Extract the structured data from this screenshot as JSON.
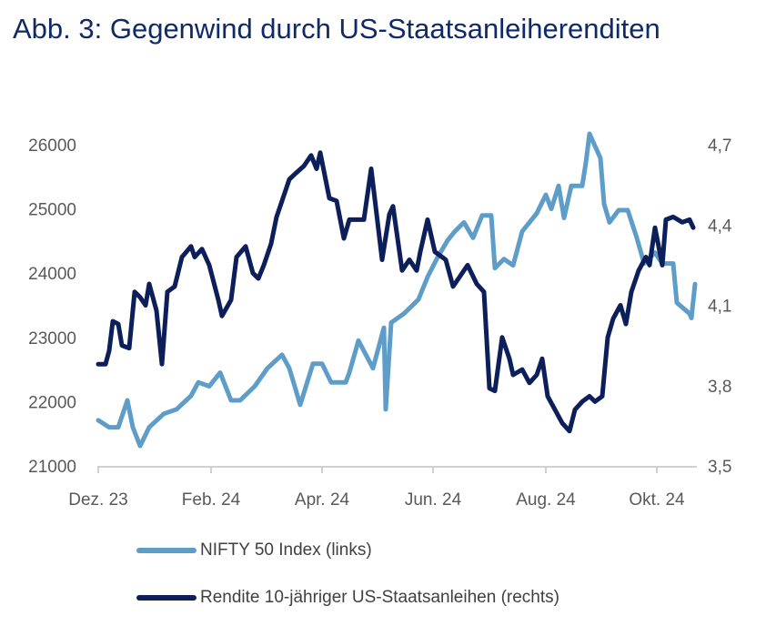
{
  "chart_data": {
    "type": "line",
    "title": "Abb. 3: Gegenwind durch US-Staatsanleiherenditen",
    "x_ticks": [
      {
        "date": "2023-12-31",
        "label": "Dez. 23"
      },
      {
        "date": "2024-02-29",
        "label": "Feb. 24"
      },
      {
        "date": "2024-04-30",
        "label": "Apr. 24"
      },
      {
        "date": "2024-06-30",
        "label": "Jun. 24"
      },
      {
        "date": "2024-08-31",
        "label": "Aug. 24"
      },
      {
        "date": "2024-10-31",
        "label": "Okt. 24"
      }
    ],
    "y_left": {
      "lim": [
        21000,
        26000
      ],
      "ticks": [
        "21000",
        "22000",
        "23000",
        "24000",
        "25000",
        "26000"
      ]
    },
    "y_right": {
      "lim": [
        3.5,
        4.7
      ],
      "ticks": [
        "3,5",
        "3,8",
        "4,1",
        "4,4",
        "4,7"
      ]
    },
    "grid": false,
    "legend_placement": "bottom",
    "series": [
      {
        "name": "NIFTY 50 Index  (links)",
        "axis": "left",
        "color": "#5f9dc9",
        "points": [
          [
            "2023-12-29",
            21710
          ],
          [
            "2024-01-04",
            21600
          ],
          [
            "2024-01-09",
            21600
          ],
          [
            "2024-01-14",
            22020
          ],
          [
            "2024-01-17",
            21600
          ],
          [
            "2024-01-21",
            21310
          ],
          [
            "2024-01-26",
            21600
          ],
          [
            "2024-02-03",
            21810
          ],
          [
            "2024-02-10",
            21880
          ],
          [
            "2024-02-18",
            22090
          ],
          [
            "2024-02-22",
            22300
          ],
          [
            "2024-02-28",
            22240
          ],
          [
            "2024-03-05",
            22450
          ],
          [
            "2024-03-11",
            22020
          ],
          [
            "2024-03-16",
            22020
          ],
          [
            "2024-03-24",
            22240
          ],
          [
            "2024-03-31",
            22520
          ],
          [
            "2024-04-08",
            22730
          ],
          [
            "2024-04-12",
            22520
          ],
          [
            "2024-04-18",
            21950
          ],
          [
            "2024-04-25",
            22590
          ],
          [
            "2024-04-30",
            22590
          ],
          [
            "2024-05-05",
            22300
          ],
          [
            "2024-05-13",
            22300
          ],
          [
            "2024-05-15",
            22450
          ],
          [
            "2024-05-20",
            22950
          ],
          [
            "2024-05-28",
            22520
          ],
          [
            "2024-06-03",
            23150
          ],
          [
            "2024-06-04",
            21880
          ],
          [
            "2024-06-07",
            23230
          ],
          [
            "2024-06-14",
            23370
          ],
          [
            "2024-06-22",
            23590
          ],
          [
            "2024-06-27",
            23940
          ],
          [
            "2024-07-02",
            24220
          ],
          [
            "2024-07-08",
            24510
          ],
          [
            "2024-07-12",
            24650
          ],
          [
            "2024-07-17",
            24790
          ],
          [
            "2024-07-22",
            24550
          ],
          [
            "2024-07-27",
            24900
          ],
          [
            "2024-08-01",
            24900
          ],
          [
            "2024-08-03",
            24080
          ],
          [
            "2024-08-08",
            24220
          ],
          [
            "2024-08-13",
            24120
          ],
          [
            "2024-08-18",
            24650
          ],
          [
            "2024-08-26",
            24930
          ],
          [
            "2024-08-31",
            25220
          ],
          [
            "2024-09-03",
            25000
          ],
          [
            "2024-09-07",
            25360
          ],
          [
            "2024-09-10",
            24860
          ],
          [
            "2024-09-14",
            25360
          ],
          [
            "2024-09-20",
            25360
          ],
          [
            "2024-09-22",
            25720
          ],
          [
            "2024-09-24",
            26170
          ],
          [
            "2024-09-30",
            25790
          ],
          [
            "2024-10-02",
            25080
          ],
          [
            "2024-10-05",
            24790
          ],
          [
            "2024-10-10",
            24980
          ],
          [
            "2024-10-15",
            24980
          ],
          [
            "2024-10-20",
            24550
          ],
          [
            "2024-10-24",
            24150
          ],
          [
            "2024-10-30",
            24320
          ],
          [
            "2024-11-03",
            24150
          ],
          [
            "2024-11-09",
            24150
          ],
          [
            "2024-11-11",
            23540
          ],
          [
            "2024-11-18",
            23370
          ],
          [
            "2024-11-19",
            23300
          ],
          [
            "2024-11-21",
            23830
          ]
        ]
      },
      {
        "name": "Rendite 10-jähriger US-Staatsanleihen (rechts)",
        "axis": "right",
        "color": "#0c1f5a",
        "points": [
          [
            "2023-12-29",
            3.88
          ],
          [
            "2024-01-02",
            3.88
          ],
          [
            "2024-01-04",
            3.93
          ],
          [
            "2024-01-06",
            4.04
          ],
          [
            "2024-01-09",
            4.03
          ],
          [
            "2024-01-11",
            3.95
          ],
          [
            "2024-01-15",
            3.94
          ],
          [
            "2024-01-18",
            4.15
          ],
          [
            "2024-01-21",
            4.13
          ],
          [
            "2024-01-24",
            4.1
          ],
          [
            "2024-01-26",
            4.18
          ],
          [
            "2024-01-30",
            4.08
          ],
          [
            "2024-02-02",
            3.88
          ],
          [
            "2024-02-05",
            4.15
          ],
          [
            "2024-02-09",
            4.17
          ],
          [
            "2024-02-13",
            4.28
          ],
          [
            "2024-02-18",
            4.32
          ],
          [
            "2024-02-20",
            4.28
          ],
          [
            "2024-02-24",
            4.31
          ],
          [
            "2024-02-28",
            4.25
          ],
          [
            "2024-03-04",
            4.12
          ],
          [
            "2024-03-06",
            4.06
          ],
          [
            "2024-03-11",
            4.12
          ],
          [
            "2024-03-14",
            4.28
          ],
          [
            "2024-03-19",
            4.32
          ],
          [
            "2024-03-23",
            4.22
          ],
          [
            "2024-03-26",
            4.2
          ],
          [
            "2024-03-29",
            4.25
          ],
          [
            "2024-04-02",
            4.33
          ],
          [
            "2024-04-05",
            4.43
          ],
          [
            "2024-04-08",
            4.49
          ],
          [
            "2024-04-12",
            4.57
          ],
          [
            "2024-04-15",
            4.59
          ],
          [
            "2024-04-20",
            4.62
          ],
          [
            "2024-04-24",
            4.66
          ],
          [
            "2024-04-27",
            4.61
          ],
          [
            "2024-04-29",
            4.67
          ],
          [
            "2024-05-04",
            4.5
          ],
          [
            "2024-05-08",
            4.49
          ],
          [
            "2024-05-12",
            4.35
          ],
          [
            "2024-05-15",
            4.42
          ],
          [
            "2024-05-23",
            4.42
          ],
          [
            "2024-05-27",
            4.61
          ],
          [
            "2024-06-02",
            4.27
          ],
          [
            "2024-06-06",
            4.44
          ],
          [
            "2024-06-08",
            4.47
          ],
          [
            "2024-06-13",
            4.23
          ],
          [
            "2024-06-17",
            4.27
          ],
          [
            "2024-06-21",
            4.23
          ],
          [
            "2024-06-23",
            4.3
          ],
          [
            "2024-06-27",
            4.42
          ],
          [
            "2024-07-01",
            4.3
          ],
          [
            "2024-07-07",
            4.27
          ],
          [
            "2024-07-11",
            4.17
          ],
          [
            "2024-07-14",
            4.2
          ],
          [
            "2024-07-19",
            4.25
          ],
          [
            "2024-07-24",
            4.18
          ],
          [
            "2024-07-28",
            4.15
          ],
          [
            "2024-07-31",
            3.79
          ],
          [
            "2024-08-03",
            3.78
          ],
          [
            "2024-08-07",
            3.98
          ],
          [
            "2024-08-11",
            3.9
          ],
          [
            "2024-08-13",
            3.84
          ],
          [
            "2024-08-18",
            3.86
          ],
          [
            "2024-08-22",
            3.81
          ],
          [
            "2024-08-26",
            3.84
          ],
          [
            "2024-08-29",
            3.9
          ],
          [
            "2024-09-01",
            3.76
          ],
          [
            "2024-09-05",
            3.71
          ],
          [
            "2024-09-09",
            3.66
          ],
          [
            "2024-09-13",
            3.63
          ],
          [
            "2024-09-16",
            3.71
          ],
          [
            "2024-09-20",
            3.74
          ],
          [
            "2024-09-24",
            3.76
          ],
          [
            "2024-09-27",
            3.74
          ],
          [
            "2024-10-01",
            3.76
          ],
          [
            "2024-10-04",
            3.98
          ],
          [
            "2024-10-07",
            4.05
          ],
          [
            "2024-10-11",
            4.1
          ],
          [
            "2024-10-14",
            4.03
          ],
          [
            "2024-10-17",
            4.15
          ],
          [
            "2024-10-21",
            4.23
          ],
          [
            "2024-10-25",
            4.28
          ],
          [
            "2024-10-27",
            4.25
          ],
          [
            "2024-10-30",
            4.39
          ],
          [
            "2024-11-03",
            4.25
          ],
          [
            "2024-11-05",
            4.42
          ],
          [
            "2024-11-09",
            4.43
          ],
          [
            "2024-11-14",
            4.41
          ],
          [
            "2024-11-18",
            4.42
          ],
          [
            "2024-11-20",
            4.39
          ]
        ]
      }
    ]
  }
}
